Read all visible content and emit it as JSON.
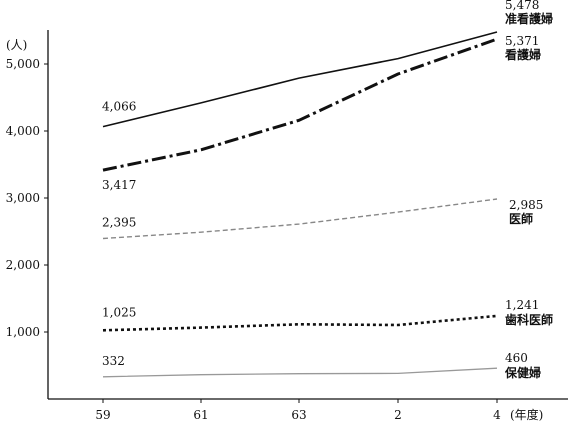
{
  "chart_data": {
    "type": "line",
    "y_unit": "(人)",
    "x_unit": "(年度)",
    "categories": [
      "59",
      "61",
      "63",
      "2",
      "4"
    ],
    "ylim": [
      0,
      5500
    ],
    "y_ticks": [
      1000,
      2000,
      3000,
      4000,
      5000
    ],
    "y_tick_labels": [
      "1,000",
      "2,000",
      "3,000",
      "4,000",
      "5,000"
    ],
    "grid": false,
    "series": [
      {
        "name": "准看護婦",
        "values": [
          4066,
          4420,
          4790,
          5080,
          5478
        ],
        "start_label": "4,066",
        "end_label": "5,478",
        "style": "solid",
        "color": "#111111"
      },
      {
        "name": "看護婦",
        "values": [
          3417,
          3720,
          4160,
          4850,
          5371
        ],
        "start_label": "3,417",
        "end_label": "5,371",
        "style": "dashdot",
        "color": "#111111"
      },
      {
        "name": "医師",
        "values": [
          2395,
          2490,
          2610,
          2790,
          2985
        ],
        "start_label": "2,395",
        "end_label": "2,985",
        "style": "dashed",
        "color": "#888888"
      },
      {
        "name": "歯科医師",
        "values": [
          1025,
          1065,
          1115,
          1105,
          1241
        ],
        "start_label": "1,025",
        "end_label": "1,241",
        "style": "dotted",
        "color": "#111111"
      },
      {
        "name": "保健婦",
        "values": [
          332,
          362,
          378,
          382,
          460
        ],
        "start_label": "332",
        "end_label": "460",
        "style": "solid-thin",
        "color": "#999999"
      }
    ]
  }
}
